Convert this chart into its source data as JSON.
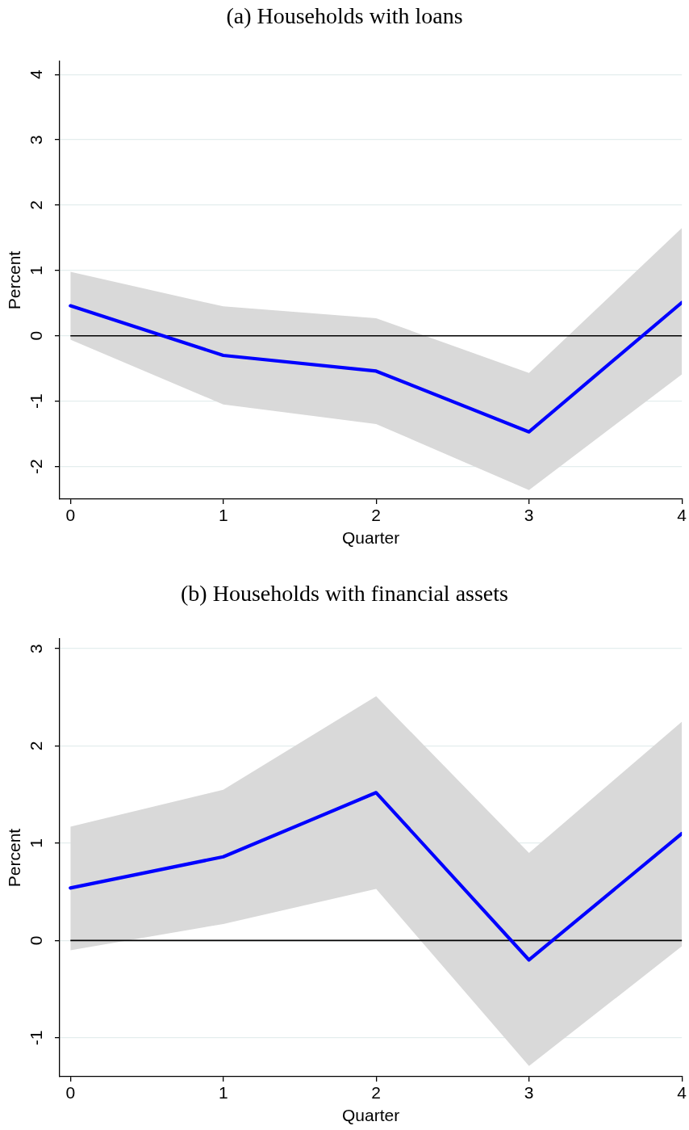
{
  "chart_data": [
    {
      "type": "line",
      "title": "(a) Households with loans",
      "xlabel": "Quarter",
      "ylabel": "Percent",
      "x": [
        0,
        1,
        2,
        3,
        4
      ],
      "series": [
        {
          "color": "#0000ff",
          "values": [
            0.46,
            -0.3,
            -0.54,
            -1.47,
            0.51
          ],
          "lower": [
            -0.06,
            -1.05,
            -1.35,
            -2.36,
            -0.59
          ],
          "upper": [
            0.98,
            0.45,
            0.27,
            -0.57,
            1.65
          ]
        }
      ],
      "xlim": [
        -0.07,
        4
      ],
      "xticks": [
        0,
        1,
        2,
        3,
        4
      ],
      "ylim": [
        -2.5,
        4.2
      ],
      "yticks": [
        -2,
        -1,
        0,
        1,
        2,
        3,
        4
      ],
      "grid": "y",
      "marker": "none",
      "line_style": "solid",
      "ref_lines": [
        {
          "axis": "y",
          "value": 0,
          "color": "#000000"
        }
      ]
    },
    {
      "type": "line",
      "title": "(b) Households with financial assets",
      "xlabel": "Quarter",
      "ylabel": "Percent",
      "x": [
        0,
        1,
        2,
        3,
        4
      ],
      "series": [
        {
          "color": "#0000ff",
          "values": [
            0.54,
            0.86,
            1.52,
            -0.2,
            1.1
          ],
          "lower": [
            -0.1,
            0.17,
            0.53,
            -1.29,
            -0.06
          ],
          "upper": [
            1.17,
            1.55,
            2.51,
            0.9,
            2.25
          ]
        }
      ],
      "xlim": [
        -0.07,
        4
      ],
      "xticks": [
        0,
        1,
        2,
        3,
        4
      ],
      "ylim": [
        -1.4,
        3.1
      ],
      "yticks": [
        -1,
        0,
        1,
        2,
        3
      ],
      "grid": "y",
      "marker": "none",
      "line_style": "solid",
      "ref_lines": [
        {
          "axis": "y",
          "value": 0,
          "color": "#000000"
        }
      ]
    }
  ]
}
